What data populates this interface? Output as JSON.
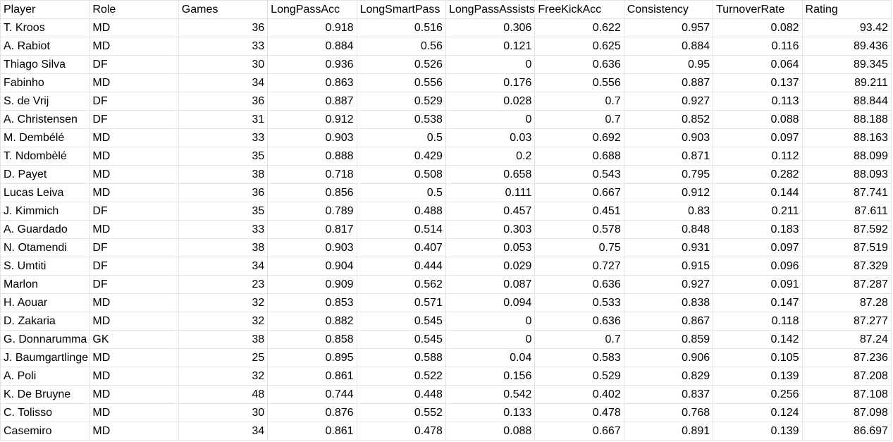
{
  "sheet": {
    "headers": [
      "Player",
      "Role",
      "Games",
      "LongPassAcc",
      "LongSmartPass",
      "LongPassAssists",
      "FreeKickAcc",
      "Consistency",
      "TurnoverRate",
      "Rating"
    ],
    "rows": [
      [
        "T. Kroos",
        "MD",
        "36",
        "0.918",
        "0.516",
        "0.306",
        "0.622",
        "0.957",
        "0.082",
        "93.42"
      ],
      [
        "A. Rabiot",
        "MD",
        "33",
        "0.884",
        "0.56",
        "0.121",
        "0.625",
        "0.884",
        "0.116",
        "89.436"
      ],
      [
        "Thiago Silva",
        "DF",
        "30",
        "0.936",
        "0.526",
        "0",
        "0.636",
        "0.95",
        "0.064",
        "89.345"
      ],
      [
        "Fabinho",
        "MD",
        "34",
        "0.863",
        "0.556",
        "0.176",
        "0.556",
        "0.887",
        "0.137",
        "89.211"
      ],
      [
        "S. de Vrij",
        "DF",
        "36",
        "0.887",
        "0.529",
        "0.028",
        "0.7",
        "0.927",
        "0.113",
        "88.844"
      ],
      [
        "A. Christensen",
        "DF",
        "31",
        "0.912",
        "0.538",
        "0",
        "0.7",
        "0.852",
        "0.088",
        "88.188"
      ],
      [
        "M. Dembélé",
        "MD",
        "33",
        "0.903",
        "0.5",
        "0.03",
        "0.692",
        "0.903",
        "0.097",
        "88.163"
      ],
      [
        "T. Ndombèlé",
        "MD",
        "35",
        "0.888",
        "0.429",
        "0.2",
        "0.688",
        "0.871",
        "0.112",
        "88.099"
      ],
      [
        "D. Payet",
        "MD",
        "38",
        "0.718",
        "0.508",
        "0.658",
        "0.543",
        "0.795",
        "0.282",
        "88.093"
      ],
      [
        "Lucas Leiva",
        "MD",
        "36",
        "0.856",
        "0.5",
        "0.111",
        "0.667",
        "0.912",
        "0.144",
        "87.741"
      ],
      [
        "J. Kimmich",
        "DF",
        "35",
        "0.789",
        "0.488",
        "0.457",
        "0.451",
        "0.83",
        "0.211",
        "87.611"
      ],
      [
        "A. Guardado",
        "MD",
        "33",
        "0.817",
        "0.514",
        "0.303",
        "0.578",
        "0.848",
        "0.183",
        "87.592"
      ],
      [
        "N. Otamendi",
        "DF",
        "38",
        "0.903",
        "0.407",
        "0.053",
        "0.75",
        "0.931",
        "0.097",
        "87.519"
      ],
      [
        "S. Umtiti",
        "DF",
        "34",
        "0.904",
        "0.444",
        "0.029",
        "0.727",
        "0.915",
        "0.096",
        "87.329"
      ],
      [
        "Marlon",
        "DF",
        "23",
        "0.909",
        "0.562",
        "0.087",
        "0.636",
        "0.927",
        "0.091",
        "87.287"
      ],
      [
        "H. Aouar",
        "MD",
        "32",
        "0.853",
        "0.571",
        "0.094",
        "0.533",
        "0.838",
        "0.147",
        "87.28"
      ],
      [
        "D. Zakaria",
        "MD",
        "32",
        "0.882",
        "0.545",
        "0",
        "0.636",
        "0.867",
        "0.118",
        "87.277"
      ],
      [
        "G. Donnarumma",
        "GK",
        "38",
        "0.858",
        "0.545",
        "0",
        "0.7",
        "0.859",
        "0.142",
        "87.24"
      ],
      [
        "J. Baumgartlinger",
        "MD",
        "25",
        "0.895",
        "0.588",
        "0.04",
        "0.583",
        "0.906",
        "0.105",
        "87.236"
      ],
      [
        "A. Poli",
        "MD",
        "32",
        "0.861",
        "0.522",
        "0.156",
        "0.529",
        "0.829",
        "0.139",
        "87.208"
      ],
      [
        "K. De Bruyne",
        "MD",
        "48",
        "0.744",
        "0.448",
        "0.542",
        "0.402",
        "0.837",
        "0.256",
        "87.108"
      ],
      [
        "C. Tolisso",
        "MD",
        "30",
        "0.876",
        "0.552",
        "0.133",
        "0.478",
        "0.768",
        "0.124",
        "87.098"
      ],
      [
        "Casemiro",
        "MD",
        "34",
        "0.861",
        "0.478",
        "0.088",
        "0.667",
        "0.891",
        "0.139",
        "86.697"
      ]
    ],
    "numeric_columns": [
      2,
      3,
      4,
      5,
      6,
      7,
      8,
      9
    ]
  }
}
